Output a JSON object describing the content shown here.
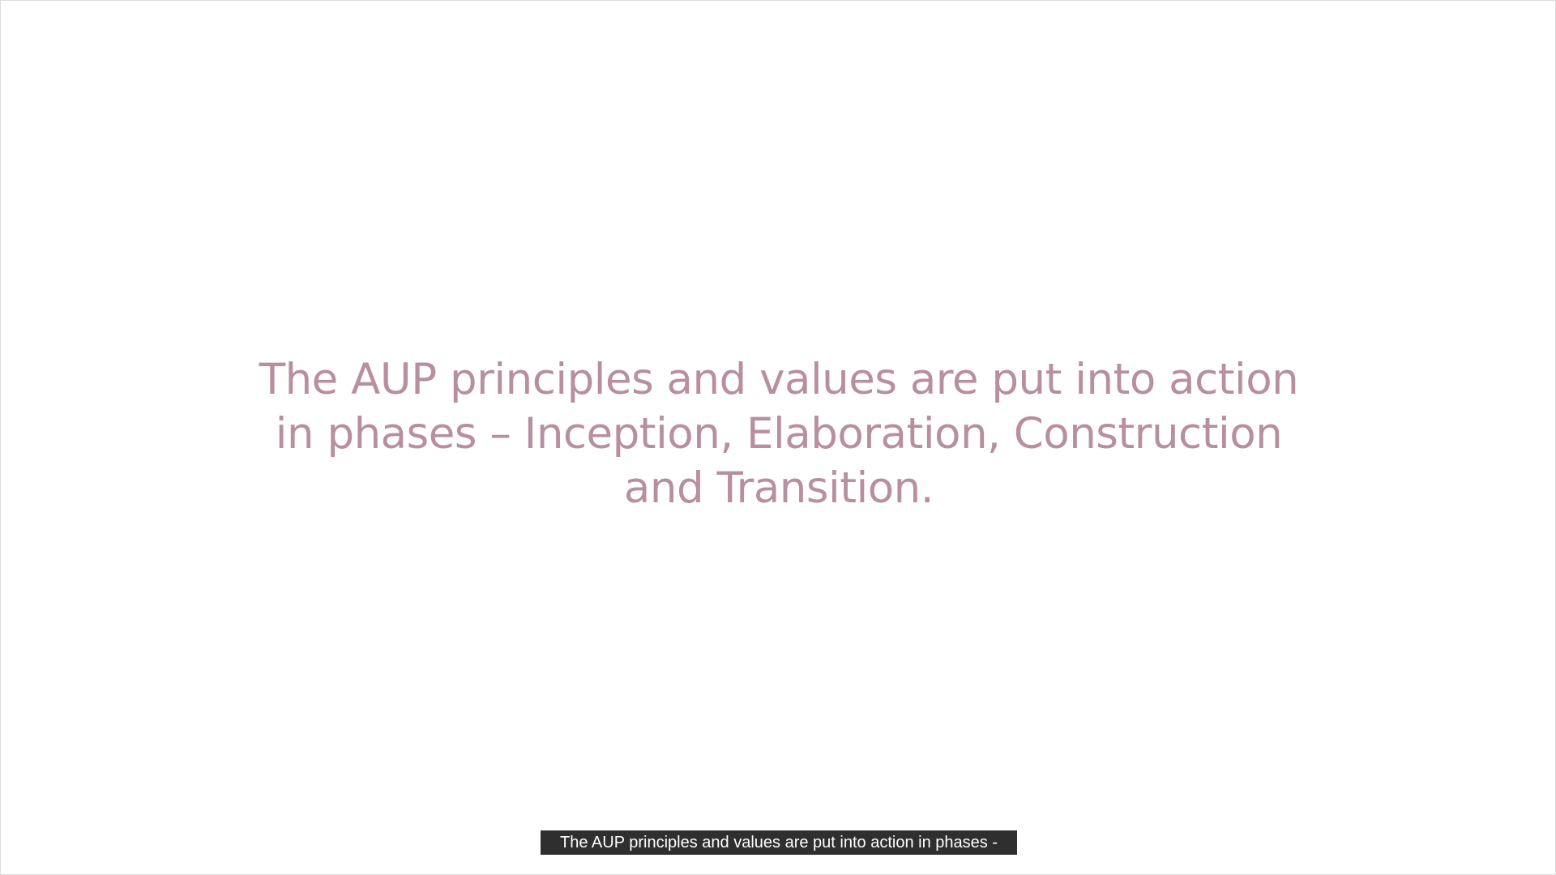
{
  "slide": {
    "lines": [
      "The AUP principles and values are put into action",
      "in phases – Inception, Elaboration, Construction",
      "and Transition."
    ]
  },
  "caption": {
    "text": "The AUP principles and values are put into action in phases -"
  },
  "colors": {
    "slide_text": "#b88fa0",
    "caption_bg": "#2f2f2f",
    "caption_text": "#ffffff",
    "background": "#ffffff"
  }
}
